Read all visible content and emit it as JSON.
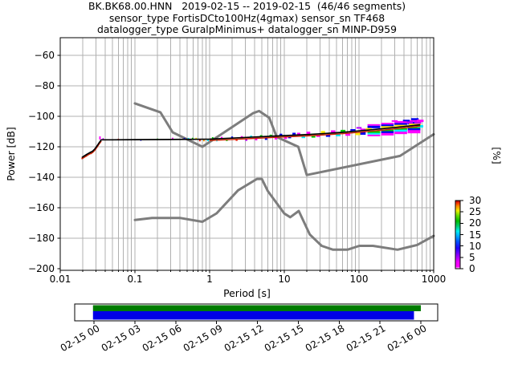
{
  "title": {
    "line1": "BK.BK68.00.HNN   2019-02-15 -- 2019-02-15  (46/46 segments)",
    "line2": "sensor_type FortisDCto100Hz(4gmax) sensor_sn TF468",
    "line3": "datalogger_type GuralpMinimus+ datalogger_sn MINP-D959"
  },
  "axes": {
    "ylabel": "Power [dB]",
    "xlabel": "Period [s]",
    "x_ticks": [
      {
        "t": 0.01,
        "label": "0.01"
      },
      {
        "t": 0.1,
        "label": "0.1"
      },
      {
        "t": 1,
        "label": "1"
      },
      {
        "t": 10,
        "label": "10"
      },
      {
        "t": 100,
        "label": "100"
      },
      {
        "t": 1000,
        "label": "1000"
      }
    ],
    "y_ticks": [
      {
        "v": -60,
        "label": "−60"
      },
      {
        "v": -80,
        "label": "−80"
      },
      {
        "v": -100,
        "label": "−100"
      },
      {
        "v": -120,
        "label": "−120"
      },
      {
        "v": -140,
        "label": "−140"
      },
      {
        "v": -160,
        "label": "−160"
      },
      {
        "v": -180,
        "label": "−180"
      },
      {
        "v": -200,
        "label": "−200"
      }
    ]
  },
  "colorbar": {
    "label": "[%]",
    "ticks": [
      {
        "v": 30,
        "label": "30"
      },
      {
        "v": 25,
        "label": "25"
      },
      {
        "v": 20,
        "label": "20"
      },
      {
        "v": 15,
        "label": "15"
      },
      {
        "v": 10,
        "label": "10"
      },
      {
        "v": 5,
        "label": "5"
      },
      {
        "v": 0,
        "label": "0"
      }
    ],
    "stops": [
      [
        0.0,
        "#ffffff"
      ],
      [
        0.03,
        "#ff00ff"
      ],
      [
        0.1,
        "#ee00ff"
      ],
      [
        0.2,
        "#8800ff"
      ],
      [
        0.3,
        "#2200ff"
      ],
      [
        0.4,
        "#0055ff"
      ],
      [
        0.48,
        "#00aaff"
      ],
      [
        0.55,
        "#00eeee"
      ],
      [
        0.63,
        "#00cc66"
      ],
      [
        0.7,
        "#00bb00"
      ],
      [
        0.78,
        "#66dd00"
      ],
      [
        0.85,
        "#eeee00"
      ],
      [
        0.92,
        "#ff8800"
      ],
      [
        0.97,
        "#ee2200"
      ],
      [
        1.0,
        "#990000"
      ]
    ],
    "vmin": 0,
    "vmax": 30
  },
  "timeline": {
    "labels": [
      "02-15 00",
      "02-15 03",
      "02-15 06",
      "02-15 09",
      "02-15 12",
      "02-15 15",
      "02-15 18",
      "02-15 21",
      "02-16 00"
    ],
    "green": {
      "t0": -0.003,
      "t1": 1.0,
      "color": "#007c00"
    },
    "blue": {
      "t0": -0.003,
      "t1": 0.979,
      "color": "#0000e6"
    }
  },
  "chart_data": {
    "type": "line",
    "xscale": "log",
    "xlim": [
      0.01,
      1000
    ],
    "ylim": [
      -201,
      -48.4
    ],
    "xlabel": "Period [s]",
    "ylabel": "Power [dB]",
    "grid": true,
    "series": [
      {
        "name": "noise-model-high-NHNM",
        "color": "#7d7d7d",
        "width": 3,
        "points": [
          [
            0.1,
            -91.5
          ],
          [
            0.22,
            -97.4
          ],
          [
            0.32,
            -110.5
          ],
          [
            0.8,
            -120.0
          ],
          [
            3.8,
            -98.0
          ],
          [
            4.6,
            -96.5
          ],
          [
            6.3,
            -101.0
          ],
          [
            7.9,
            -113.5
          ],
          [
            15.4,
            -120.0
          ],
          [
            20.0,
            -138.5
          ],
          [
            354.8,
            -126.0
          ],
          [
            1000,
            -111.8
          ]
        ]
      },
      {
        "name": "noise-model-low-NLNM",
        "color": "#7d7d7d",
        "width": 3,
        "points": [
          [
            0.1,
            -168.0
          ],
          [
            0.17,
            -166.7
          ],
          [
            0.4,
            -166.7
          ],
          [
            0.8,
            -169.2
          ],
          [
            1.24,
            -163.7
          ],
          [
            2.4,
            -148.6
          ],
          [
            4.3,
            -141.1
          ],
          [
            5.0,
            -141.1
          ],
          [
            6.0,
            -149.0
          ],
          [
            10.0,
            -163.8
          ],
          [
            12.0,
            -166.2
          ],
          [
            15.6,
            -162.1
          ],
          [
            21.9,
            -177.5
          ],
          [
            31.6,
            -185.0
          ],
          [
            45.0,
            -187.5
          ],
          [
            70.0,
            -187.5
          ],
          [
            101.0,
            -185.0
          ],
          [
            154.0,
            -185.0
          ],
          [
            328.0,
            -187.5
          ],
          [
            600.0,
            -184.4
          ],
          [
            1000,
            -178.5
          ]
        ]
      },
      {
        "name": "psd-mode",
        "color": "#000000",
        "shadow_color": "#cc2200",
        "width": 1.7,
        "shadow_ranges": [
          [
            0.018,
            0.038
          ],
          [
            0.45,
            700
          ]
        ],
        "points": [
          [
            0.0195,
            -127.0
          ],
          [
            0.021,
            -126.0
          ],
          [
            0.023,
            -124.8
          ],
          [
            0.025,
            -123.8
          ],
          [
            0.027,
            -123.0
          ],
          [
            0.029,
            -121.5
          ],
          [
            0.031,
            -119.5
          ],
          [
            0.033,
            -117.5
          ],
          [
            0.0355,
            -115.4
          ],
          [
            0.05,
            -115.4
          ],
          [
            0.1,
            -115.3
          ],
          [
            0.3,
            -115.2
          ],
          [
            1.0,
            -115.0
          ],
          [
            2.0,
            -114.3
          ],
          [
            4.0,
            -113.6
          ],
          [
            8.0,
            -112.9
          ],
          [
            15.0,
            -112.3
          ],
          [
            30.0,
            -111.5
          ],
          [
            60.0,
            -110.5
          ],
          [
            100.0,
            -109.6
          ],
          [
            150.0,
            -108.8
          ],
          [
            220.0,
            -108.0
          ],
          [
            320.0,
            -107.2
          ],
          [
            450.0,
            -106.4
          ],
          [
            660.0,
            -105.6
          ]
        ]
      }
    ],
    "palette": [
      "#ff00ff",
      "#bb00ff",
      "#0000ee",
      "#0077ff",
      "#00eeff",
      "#00cc00",
      "#ccee00",
      "#ffee00",
      "#ff9900",
      "#ee1100"
    ],
    "histogram_bins": [
      [
        0.0195,
        -127.6,
        9,
        0.013,
        2
      ],
      [
        0.0225,
        -126.0,
        9,
        0.013,
        2
      ],
      [
        0.026,
        -124.3,
        9,
        0.013,
        2
      ],
      [
        0.03,
        -121.0,
        9,
        0.013,
        2
      ],
      [
        0.034,
        -114.2,
        0,
        0.02,
        4
      ],
      [
        0.0375,
        -114.8,
        1,
        0.015,
        2
      ],
      [
        0.06,
        -115.2,
        9,
        0.015,
        2
      ],
      [
        0.12,
        -115.6,
        2,
        0.015,
        2
      ],
      [
        0.2,
        -115.1,
        5,
        0.016,
        2
      ],
      [
        0.32,
        -114.6,
        0,
        0.018,
        2
      ],
      [
        0.46,
        -114.7,
        2,
        0.018,
        2
      ],
      [
        0.52,
        -114.7,
        4,
        0.018,
        2
      ],
      [
        0.59,
        -114.6,
        5,
        0.018,
        2
      ],
      [
        0.66,
        -114.6,
        7,
        0.018,
        2
      ],
      [
        0.74,
        -115.9,
        9,
        0.02,
        2
      ],
      [
        0.84,
        -115.9,
        8,
        0.02,
        2
      ],
      [
        0.95,
        -115.8,
        4,
        0.02,
        2
      ],
      [
        1.1,
        -114.2,
        5,
        0.022,
        2
      ],
      [
        1.25,
        -115.9,
        4,
        0.022,
        2
      ],
      [
        1.45,
        -114.0,
        0,
        0.024,
        2
      ],
      [
        1.7,
        -115.7,
        5,
        0.024,
        2
      ],
      [
        2.0,
        -113.8,
        2,
        0.026,
        2
      ],
      [
        2.3,
        -115.6,
        9,
        0.026,
        2
      ],
      [
        2.7,
        -113.5,
        0,
        0.028,
        2
      ],
      [
        3.1,
        -115.3,
        1,
        0.028,
        3
      ],
      [
        3.6,
        -113.2,
        4,
        0.03,
        2
      ],
      [
        4.2,
        -115.0,
        0,
        0.03,
        3
      ],
      [
        4.9,
        -112.9,
        5,
        0.032,
        2
      ],
      [
        5.7,
        -114.7,
        2,
        0.032,
        3
      ],
      [
        6.6,
        -112.6,
        5,
        0.034,
        2
      ],
      [
        7.7,
        -114.4,
        0,
        0.034,
        3
      ],
      [
        9.0,
        -112.2,
        2,
        0.036,
        3
      ],
      [
        10.4,
        -114.1,
        0,
        0.04,
        3
      ],
      [
        11.8,
        -113.9,
        2,
        0.04,
        2
      ],
      [
        13.5,
        -111.6,
        2,
        0.044,
        3
      ],
      [
        15.6,
        -111.3,
        0,
        0.044,
        2
      ],
      [
        18.0,
        -113.5,
        4,
        0.048,
        3
      ],
      [
        21,
        -110.9,
        0,
        0.05,
        3
      ],
      [
        24.5,
        -113.2,
        5,
        0.052,
        3
      ],
      [
        28.5,
        -113.0,
        0,
        0.052,
        2
      ],
      [
        33,
        -110.4,
        7,
        0.056,
        3
      ],
      [
        38.5,
        -112.7,
        2,
        0.058,
        3
      ],
      [
        45,
        -110.0,
        0,
        0.06,
        3
      ],
      [
        52.5,
        -112.3,
        4,
        0.062,
        3
      ],
      [
        61,
        -109.7,
        5,
        0.064,
        3
      ],
      [
        71,
        -112.0,
        0,
        0.066,
        3
      ],
      [
        83,
        -109.2,
        2,
        0.068,
        3
      ],
      [
        97,
        -111.6,
        7,
        0.07,
        3
      ],
      [
        113,
        -108.9,
        0,
        0.072,
        3
      ],
      [
        113,
        -111.3,
        2,
        0.072,
        3
      ],
      [
        100,
        -107.6,
        1,
        0.07,
        2
      ],
      [
        158,
        -105.7,
        0,
        0.17,
        2
      ],
      [
        158,
        -107.0,
        2,
        0.17,
        3
      ],
      [
        158,
        -110.4,
        5,
        0.17,
        3
      ],
      [
        158,
        -111.4,
        4,
        0.17,
        2
      ],
      [
        158,
        -112.6,
        0,
        0.17,
        2
      ],
      [
        135,
        -108.2,
        7,
        0.08,
        2
      ],
      [
        240,
        -104.8,
        0,
        0.17,
        2
      ],
      [
        240,
        -106.1,
        2,
        0.17,
        3
      ],
      [
        240,
        -107.0,
        7,
        0.17,
        2
      ],
      [
        240,
        -109.5,
        5,
        0.17,
        3
      ],
      [
        240,
        -110.5,
        2,
        0.17,
        3
      ],
      [
        240,
        -111.8,
        0,
        0.17,
        3
      ],
      [
        362,
        -103.9,
        0,
        0.17,
        3
      ],
      [
        362,
        -105.2,
        2,
        0.17,
        3
      ],
      [
        362,
        -106.1,
        7,
        0.17,
        2
      ],
      [
        362,
        -108.6,
        5,
        0.17,
        3
      ],
      [
        362,
        -109.6,
        4,
        0.17,
        3
      ],
      [
        362,
        -110.9,
        0,
        0.17,
        3
      ],
      [
        560,
        -102.0,
        2,
        0.1,
        3
      ],
      [
        545,
        -103.3,
        0,
        0.17,
        3
      ],
      [
        530,
        -104.6,
        2,
        0.15,
        3
      ],
      [
        560,
        -105.3,
        7,
        0.16,
        2
      ],
      [
        545,
        -107.6,
        5,
        0.17,
        3
      ],
      [
        545,
        -108.7,
        2,
        0.17,
        3
      ],
      [
        545,
        -110.1,
        0,
        0.17,
        4
      ],
      [
        610,
        -104.1,
        1,
        0.09,
        3
      ],
      [
        480,
        -104.0,
        1,
        0.08,
        3
      ],
      [
        300,
        -103.1,
        0,
        0.08,
        2
      ],
      [
        430,
        -102.8,
        2,
        0.09,
        2
      ],
      [
        660,
        -106.6,
        4,
        0.08,
        3
      ],
      [
        660,
        -103.0,
        0,
        0.09,
        3
      ]
    ]
  }
}
